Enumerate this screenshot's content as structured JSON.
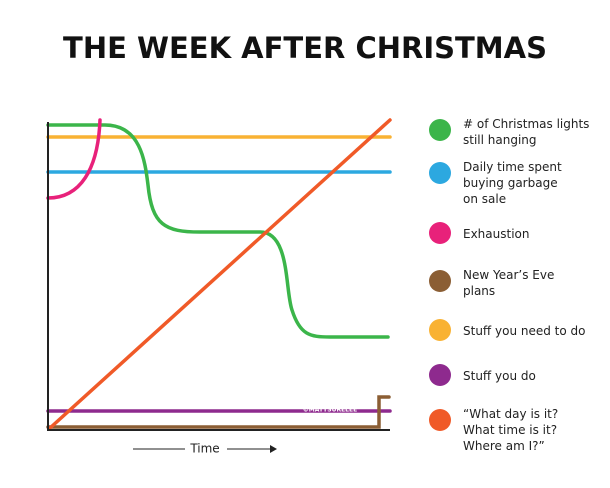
{
  "chart_data": {
    "type": "line",
    "title": "THE WEEK AFTER CHRISTMAS",
    "x_label": "Time",
    "credit": "©MATTSURELEE",
    "series": [
      {
        "name": "# of Christmas lights\nstill hanging",
        "color": "#3bb54a"
      },
      {
        "name": "Daily time spent\nbuying garbage\non sale",
        "color": "#2ca8e0"
      },
      {
        "name": "Exhaustion",
        "color": "#e8217a"
      },
      {
        "name": "New Year’s Eve\nplans",
        "color": "#8b5e34"
      },
      {
        "name": "Stuff you need to do",
        "color": "#f9b233"
      },
      {
        "name": "Stuff you do",
        "color": "#8e2a8e"
      },
      {
        "name": "“What day is it?\nWhat time is it?\nWhere am I?”",
        "color": "#f05a28"
      }
    ]
  }
}
